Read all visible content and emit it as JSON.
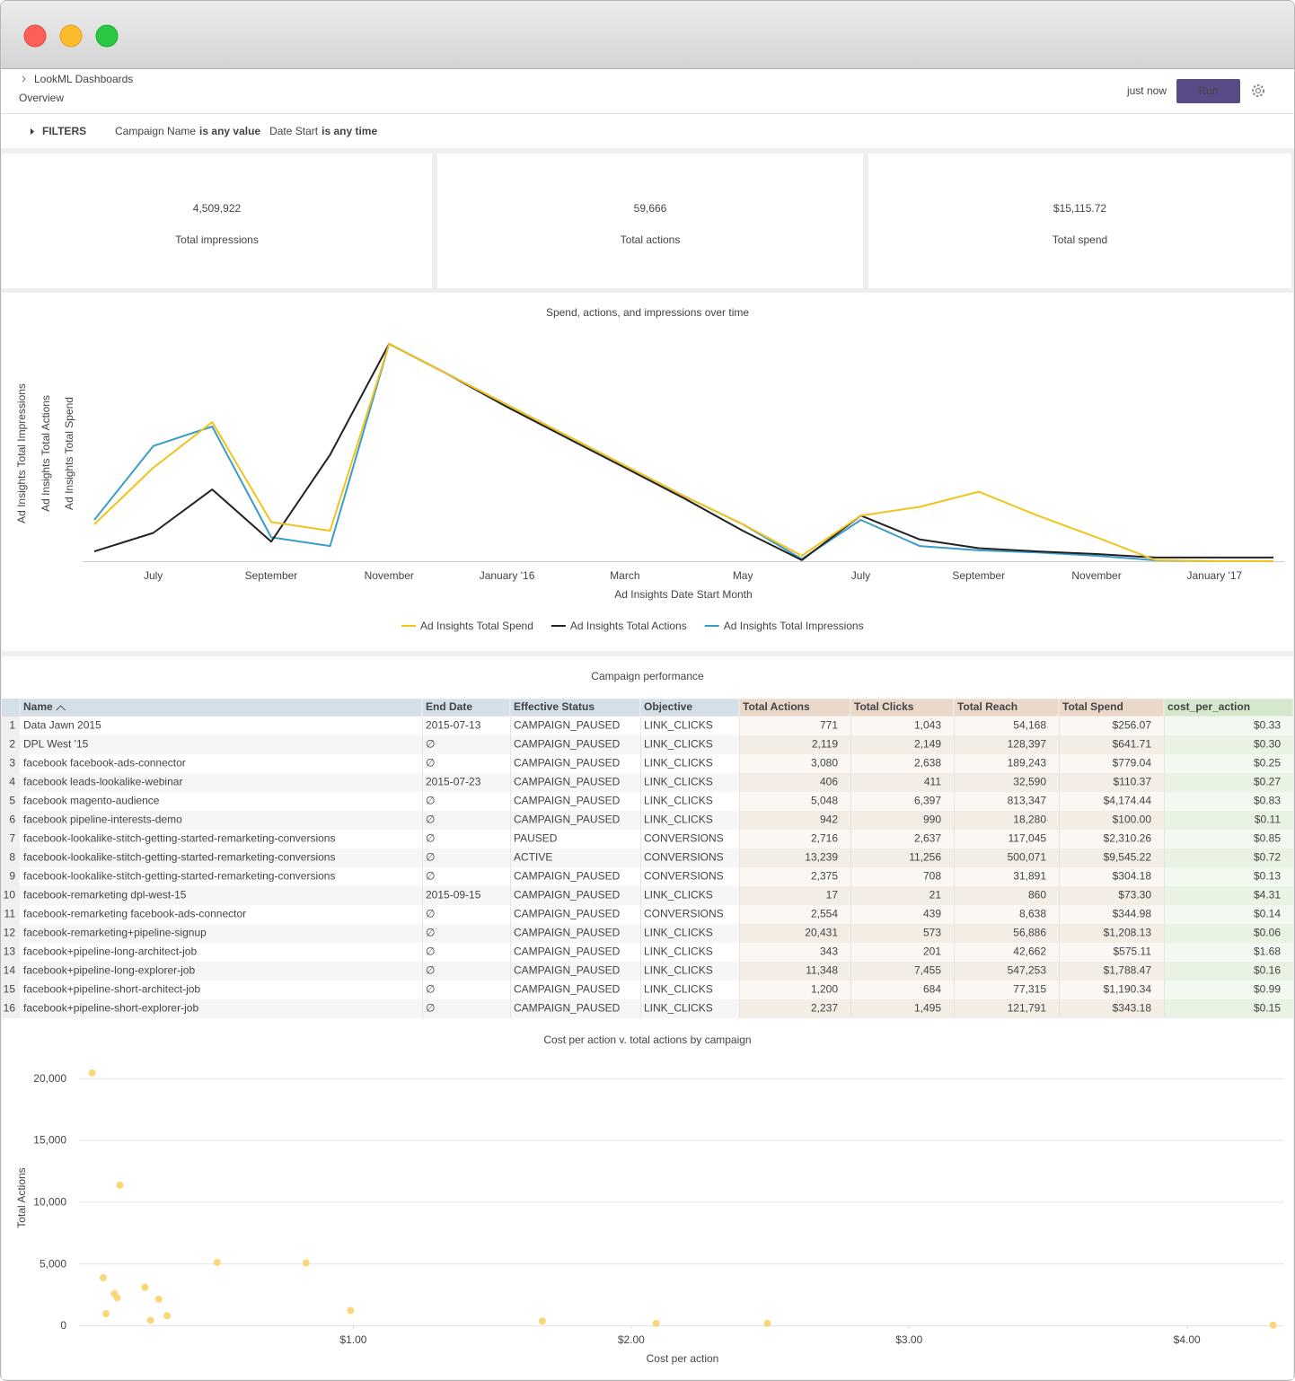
{
  "header": {
    "breadcrumb": "LookML Dashboards",
    "title": "Overview",
    "refreshed": "just now",
    "run": "Run"
  },
  "filters": {
    "label": "FILTERS",
    "items": [
      {
        "name": "Campaign Name",
        "value": "is any value"
      },
      {
        "name": "Date Start",
        "value": "is any time"
      }
    ]
  },
  "tiles": [
    {
      "value": "4,509,922",
      "label": "Total impressions"
    },
    {
      "value": "59,666",
      "label": "Total actions"
    },
    {
      "value": "$15,115.72",
      "label": "Total spend"
    }
  ],
  "table": {
    "title": "Campaign performance",
    "columns": [
      "Name",
      "End Date",
      "Effective Status",
      "Objective",
      "Total Actions",
      "Total Clicks",
      "Total Reach",
      "Total Spend",
      "cost_per_action"
    ],
    "rows": [
      {
        "n": "1",
        "cells": [
          "Data Jawn 2015",
          "2015-07-13",
          "CAMPAIGN_PAUSED",
          "LINK_CLICKS",
          "771",
          "1,043",
          "54,168",
          "$256.07",
          "$0.33"
        ]
      },
      {
        "n": "2",
        "cells": [
          "DPL West '15",
          "∅",
          "CAMPAIGN_PAUSED",
          "LINK_CLICKS",
          "2,119",
          "2,149",
          "128,397",
          "$641.71",
          "$0.30"
        ]
      },
      {
        "n": "3",
        "cells": [
          "facebook facebook-ads-connector",
          "∅",
          "CAMPAIGN_PAUSED",
          "LINK_CLICKS",
          "3,080",
          "2,638",
          "189,243",
          "$779.04",
          "$0.25"
        ]
      },
      {
        "n": "4",
        "cells": [
          "facebook leads-lookalike-webinar",
          "2015-07-23",
          "CAMPAIGN_PAUSED",
          "LINK_CLICKS",
          "406",
          "411",
          "32,590",
          "$110.37",
          "$0.27"
        ]
      },
      {
        "n": "5",
        "cells": [
          "facebook magento-audience",
          "∅",
          "CAMPAIGN_PAUSED",
          "LINK_CLICKS",
          "5,048",
          "6,397",
          "813,347",
          "$4,174.44",
          "$0.83"
        ]
      },
      {
        "n": "6",
        "cells": [
          "facebook pipeline-interests-demo",
          "∅",
          "CAMPAIGN_PAUSED",
          "LINK_CLICKS",
          "942",
          "990",
          "18,280",
          "$100.00",
          "$0.11"
        ]
      },
      {
        "n": "7",
        "cells": [
          "facebook-lookalike-stitch-getting-started-remarketing-conversions",
          "∅",
          "PAUSED",
          "CONVERSIONS",
          "2,716",
          "2,637",
          "117,045",
          "$2,310.26",
          "$0.85"
        ]
      },
      {
        "n": "8",
        "cells": [
          "facebook-lookalike-stitch-getting-started-remarketing-conversions",
          "∅",
          "ACTIVE",
          "CONVERSIONS",
          "13,239",
          "11,256",
          "500,071",
          "$9,545.22",
          "$0.72"
        ]
      },
      {
        "n": "9",
        "cells": [
          "facebook-lookalike-stitch-getting-started-remarketing-conversions",
          "∅",
          "CAMPAIGN_PAUSED",
          "CONVERSIONS",
          "2,375",
          "708",
          "31,891",
          "$304.18",
          "$0.13"
        ]
      },
      {
        "n": "10",
        "cells": [
          "facebook-remarketing dpl-west-15",
          "2015-09-15",
          "CAMPAIGN_PAUSED",
          "LINK_CLICKS",
          "17",
          "21",
          "860",
          "$73.30",
          "$4.31"
        ]
      },
      {
        "n": "11",
        "cells": [
          "facebook-remarketing facebook-ads-connector",
          "∅",
          "CAMPAIGN_PAUSED",
          "CONVERSIONS",
          "2,554",
          "439",
          "8,638",
          "$344.98",
          "$0.14"
        ]
      },
      {
        "n": "12",
        "cells": [
          "facebook-remarketing+pipeline-signup",
          "∅",
          "CAMPAIGN_PAUSED",
          "LINK_CLICKS",
          "20,431",
          "573",
          "56,886",
          "$1,208.13",
          "$0.06"
        ]
      },
      {
        "n": "13",
        "cells": [
          "facebook+pipeline-long-architect-job",
          "∅",
          "CAMPAIGN_PAUSED",
          "LINK_CLICKS",
          "343",
          "201",
          "42,662",
          "$575.11",
          "$1.68"
        ]
      },
      {
        "n": "14",
        "cells": [
          "facebook+pipeline-long-explorer-job",
          "∅",
          "CAMPAIGN_PAUSED",
          "LINK_CLICKS",
          "11,348",
          "7,455",
          "547,253",
          "$1,788.47",
          "$0.16"
        ]
      },
      {
        "n": "15",
        "cells": [
          "facebook+pipeline-short-architect-job",
          "∅",
          "CAMPAIGN_PAUSED",
          "LINK_CLICKS",
          "1,200",
          "684",
          "77,315",
          "$1,190.34",
          "$0.99"
        ]
      },
      {
        "n": "16",
        "cells": [
          "facebook+pipeline-short-explorer-job",
          "∅",
          "CAMPAIGN_PAUSED",
          "LINK_CLICKS",
          "2,237",
          "1,495",
          "121,791",
          "$343.18",
          "$0.15"
        ]
      }
    ]
  },
  "chart_data": [
    {
      "type": "line",
      "title": "Spend, actions, and impressions over time",
      "x_label": "Ad Insights Date Start Month",
      "categories": [
        null,
        "July",
        null,
        "September",
        null,
        "November",
        null,
        "January '16",
        null,
        "March",
        null,
        "May",
        null,
        "July",
        null,
        "September",
        null,
        "November",
        null,
        "January '17",
        null
      ],
      "ylim": [
        0,
        100
      ],
      "series": [
        {
          "name": "Ad Insights Total Spend",
          "color": "#f2c31a",
          "values": [
            17,
            43,
            64,
            18,
            14,
            100,
            86,
            72,
            58,
            44,
            30,
            17,
            2.5,
            21,
            25,
            32,
            21,
            11,
            0.5,
            0,
            0
          ]
        },
        {
          "name": "Ad Insights Total Actions",
          "color": "#222222",
          "values": [
            4.5,
            13,
            33,
            9,
            49,
            100,
            86,
            71,
            57,
            43,
            29,
            14,
            0.5,
            21,
            10,
            6,
            4.5,
            3.3,
            1.7,
            1.7,
            1.7
          ]
        },
        {
          "name": "Ad Insights Total Impressions",
          "color": "#3a9cc9",
          "values": [
            19,
            53,
            62,
            11,
            7,
            100,
            86,
            72,
            58,
            44,
            30,
            17,
            1,
            19,
            7,
            5,
            4,
            2.5,
            0.4,
            0,
            0
          ]
        }
      ]
    },
    {
      "type": "scatter",
      "title": "Cost per action v. total actions by campaign",
      "x_label": "Cost per action",
      "y_label": "Total Actions",
      "color": "#f9d779",
      "x": [
        0.06,
        0.16,
        0.1,
        0.14,
        0.15,
        0.11,
        0.25,
        0.3,
        0.27,
        0.33,
        0.51,
        0.83,
        0.99,
        1.68,
        2.09,
        2.49,
        4.31
      ],
      "values": [
        20431,
        11348,
        3850,
        2554,
        2237,
        942,
        3080,
        2119,
        406,
        771,
        5090,
        5048,
        1200,
        343,
        150,
        150,
        17
      ],
      "xlim": [
        0,
        4.35
      ],
      "ylim": [
        0,
        21000
      ],
      "xticks": [
        {
          "value": 1,
          "label": "$1.00"
        },
        {
          "value": 2,
          "label": "$2.00"
        },
        {
          "value": 3,
          "label": "$3.00"
        },
        {
          "value": 4,
          "label": "$4.00"
        }
      ],
      "yticks": [
        0,
        {
          "value": 5000,
          "label": "5,000"
        },
        {
          "value": 10000,
          "label": "10,000"
        },
        {
          "value": 15000,
          "label": "15,000"
        },
        {
          "value": 20000,
          "label": "20,000"
        }
      ],
      "grid": true
    }
  ]
}
